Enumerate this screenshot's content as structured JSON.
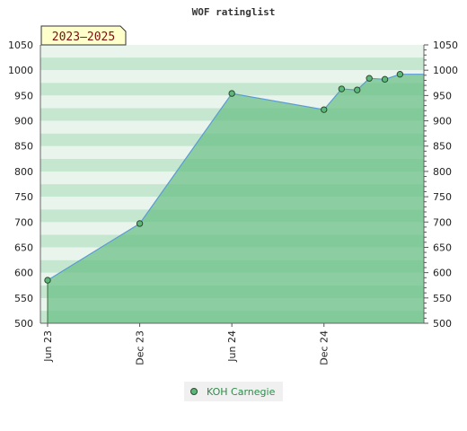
{
  "chart_data": {
    "type": "area",
    "title": "WOF ratinglist",
    "badge": "2023–2025",
    "ylim": [
      500,
      1050
    ],
    "y_ticks": [
      500,
      550,
      600,
      650,
      700,
      750,
      800,
      850,
      900,
      950,
      1000,
      1050
    ],
    "y_tick_labels": [
      "500",
      "550",
      "600",
      "650",
      "700",
      "750",
      "800",
      "850",
      "900",
      "950",
      "1000",
      "1050"
    ],
    "x_range": [
      "2023-06-01",
      "2025-06-05"
    ],
    "x_ticks": [
      {
        "date": "2023-06-01",
        "label": "Jun 23"
      },
      {
        "date": "2023-12-01",
        "label": "Dec 23"
      },
      {
        "date": "2024-06-01",
        "label": "Jun 24"
      },
      {
        "date": "2024-12-01",
        "label": "Dec 24"
      }
    ],
    "series": [
      {
        "name": "KOH Carnegie",
        "points": [
          {
            "date": "2023-06-01",
            "value": 585
          },
          {
            "date": "2023-12-01",
            "value": 697
          },
          {
            "date": "2024-06-01",
            "value": 954
          },
          {
            "date": "2024-12-01",
            "value": 922
          },
          {
            "date": "2025-01-05",
            "value": 963
          },
          {
            "date": "2025-02-05",
            "value": 961
          },
          {
            "date": "2025-03-01",
            "value": 984
          },
          {
            "date": "2025-04-01",
            "value": 982
          },
          {
            "date": "2025-05-01",
            "value": 992
          }
        ]
      }
    ],
    "grid": true,
    "legend_position": "bottom-center"
  },
  "colors": {
    "line": "#5b9bd5",
    "area_fill": "#6cc08a",
    "marker_fill": "#5cb87a",
    "marker_stroke": "#2c4a2c",
    "badge_bg": "#ffffcc",
    "band_light": "#e9f5ec",
    "band_dark": "#c5e6cf"
  }
}
